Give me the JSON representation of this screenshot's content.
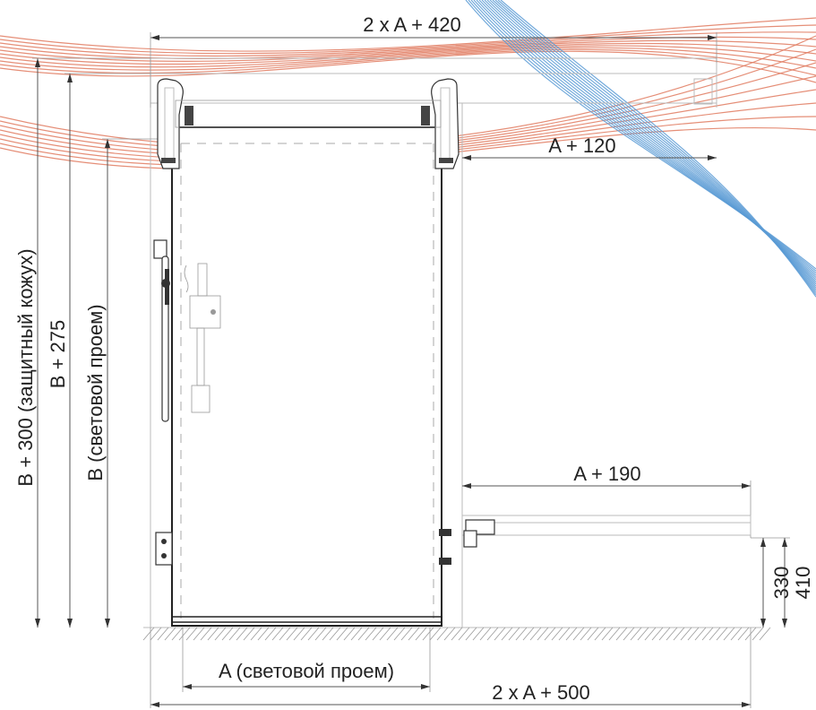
{
  "dimensions": {
    "top_width": "2 x A + 420",
    "right_offset": "A + 120",
    "shelf_width": "A + 190",
    "bottom_total": "2 x A + 500",
    "clear_width": "A (световой проем)",
    "height_cover": "B + 300 (защитный кожух)",
    "height_275": "B + 275",
    "height_clear": "B (световой проем)",
    "dim_330": "330",
    "dim_410": "410"
  },
  "colors": {
    "curve_red": "#e07a5f",
    "curve_blue": "#5b9bd5",
    "line": "#333333"
  }
}
